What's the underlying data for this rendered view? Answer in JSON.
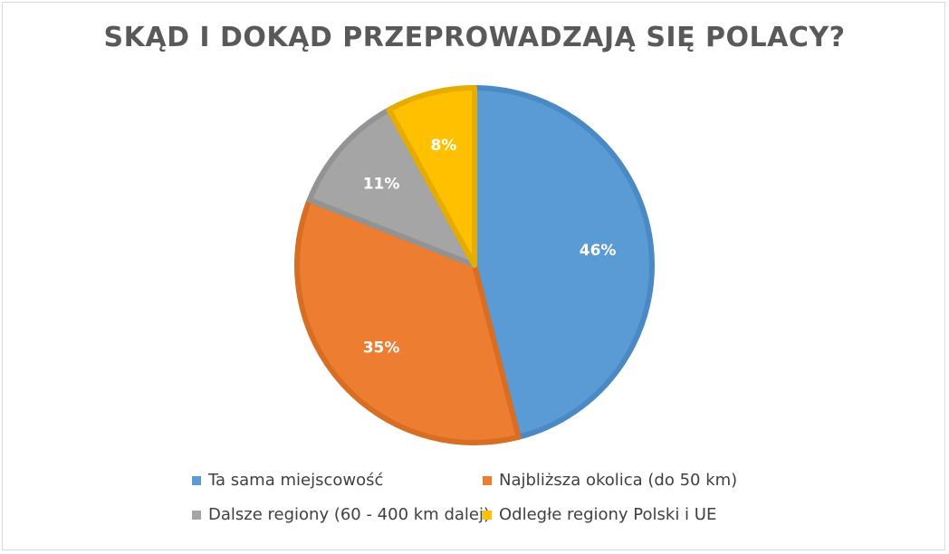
{
  "chart_data": {
    "type": "pie",
    "title": "SKĄD I DOKĄD PRZEPROWADZAJĄ SIĘ POLACY?",
    "categories": [
      "Ta sama miejscowość",
      "Najbliższa okolica (do 50 km)",
      "Dalsze regiony (60 - 400 km dalej)",
      "Odległe regiony Polski i UE"
    ],
    "values": [
      46,
      35,
      11,
      8
    ],
    "labels": [
      "46%",
      "35%",
      "11%",
      "8%"
    ],
    "colors": [
      "#5b9bd5",
      "#ed7d31",
      "#a5a5a5",
      "#ffc000"
    ],
    "border_colors": [
      "#4a89c4",
      "#d86d24",
      "#939393",
      "#e6ac00"
    ],
    "legend_position": "bottom"
  }
}
